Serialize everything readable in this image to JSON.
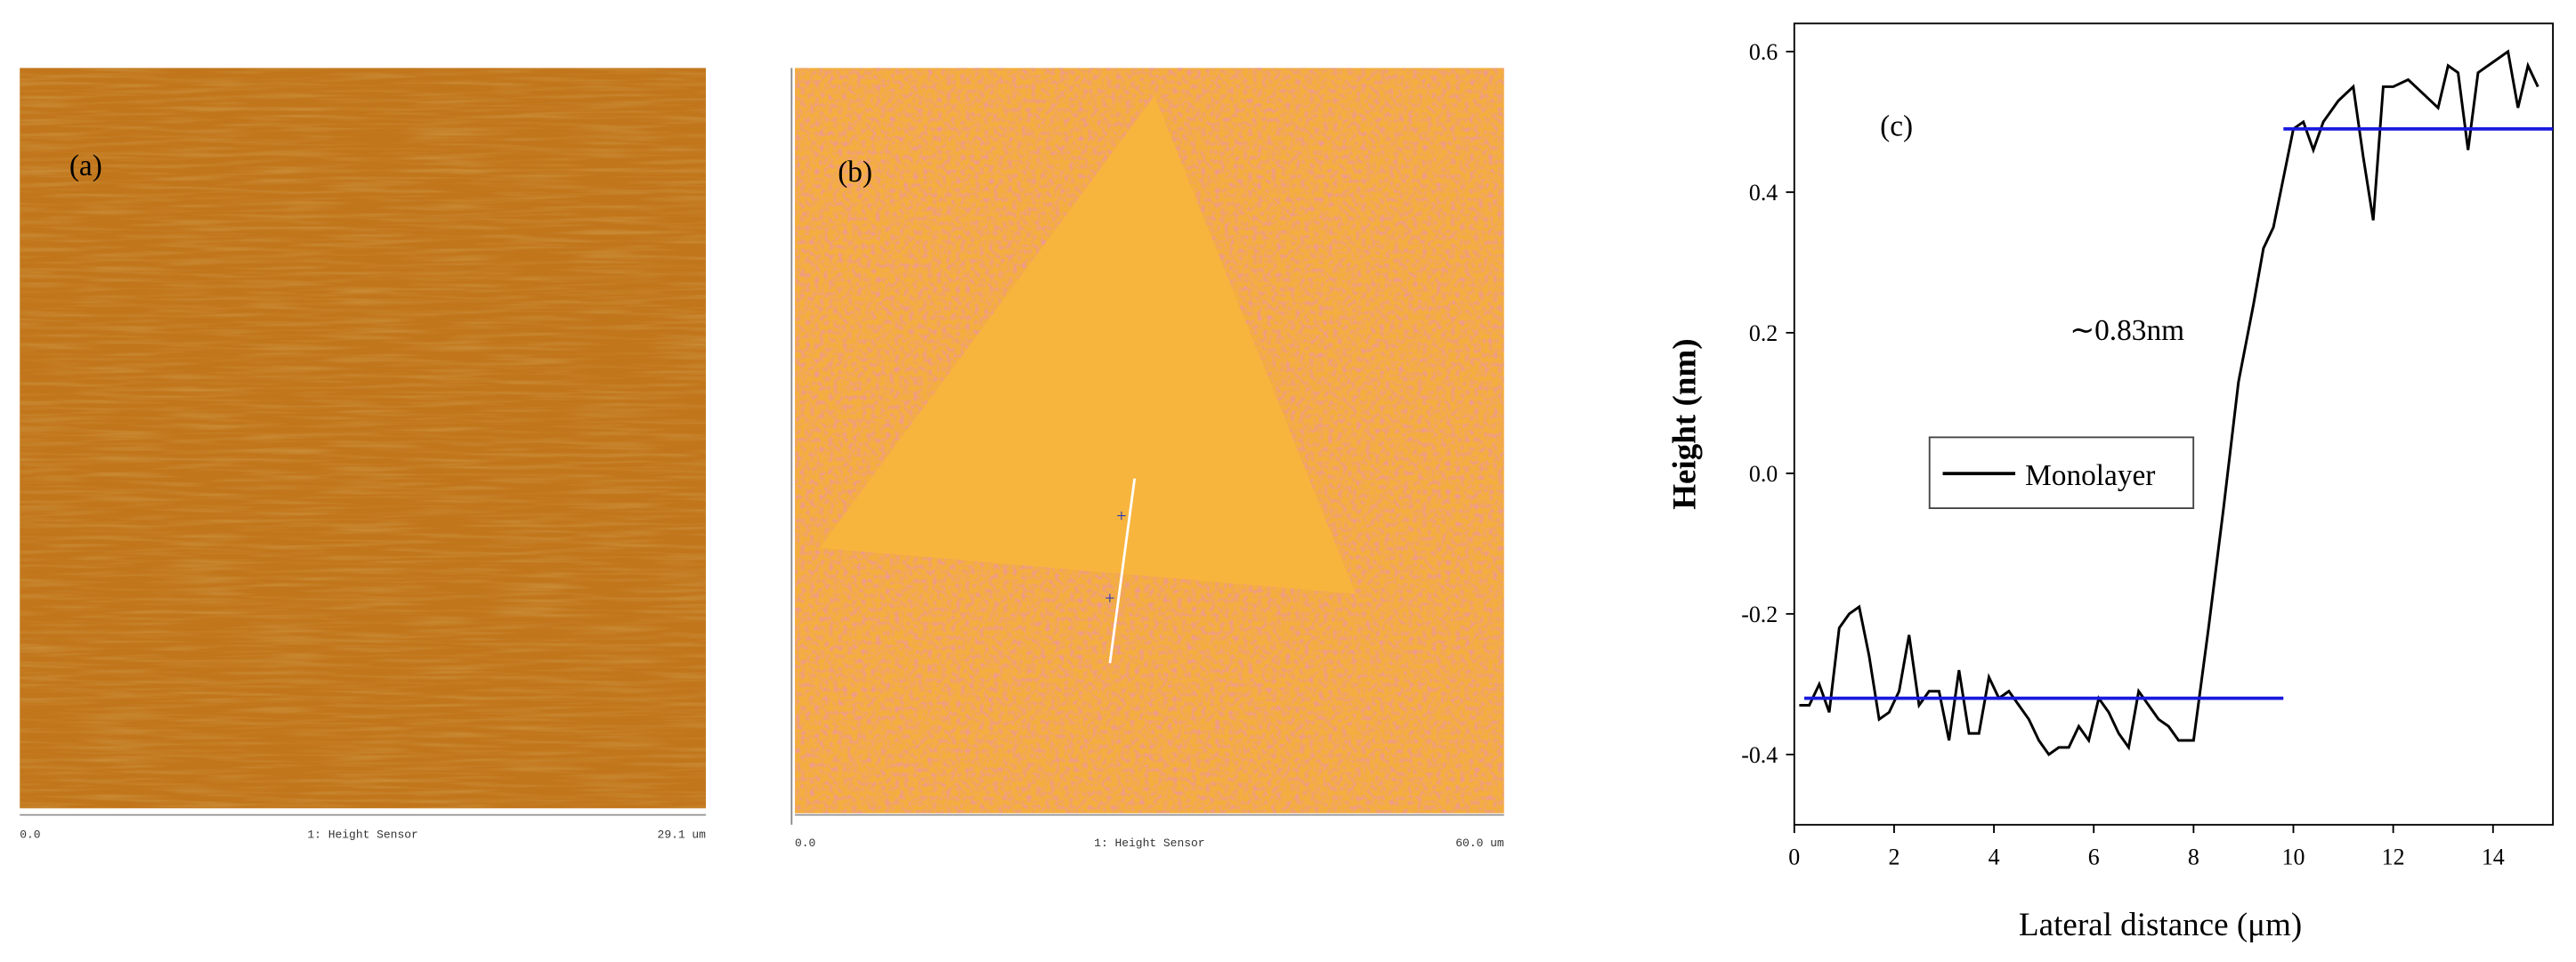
{
  "panels": [
    {
      "label": "(a)",
      "scale_start": "0.0",
      "scale_title": "1: Height Sensor",
      "scale_end": "29.1 um"
    },
    {
      "label": "(b)",
      "scale_start": "0.0",
      "scale_title": "1: Height Sensor",
      "scale_end": "60.0 um"
    }
  ],
  "chart_data": {
    "type": "line",
    "label": "(c)",
    "annotation": "∼0.83nm",
    "xlabel": "Lateral distance (μm)",
    "ylabel": "Height (nm)",
    "x": [
      0.1,
      0.3,
      0.5,
      0.7,
      0.9,
      1.1,
      1.3,
      1.5,
      1.7,
      1.9,
      2.1,
      2.3,
      2.5,
      2.7,
      2.9,
      3.1,
      3.3,
      3.5,
      3.7,
      3.9,
      4.1,
      4.3,
      4.5,
      4.7,
      4.9,
      5.1,
      5.3,
      5.5,
      5.7,
      5.9,
      6.1,
      6.3,
      6.5,
      6.7,
      6.9,
      7.1,
      7.3,
      7.5,
      7.7,
      8.0,
      8.3,
      8.6,
      8.9,
      9.2,
      9.4,
      9.6,
      9.8,
      10.0,
      10.2,
      10.4,
      10.6,
      10.9,
      11.2,
      11.4,
      11.6,
      11.8,
      12.0,
      12.3,
      12.6,
      12.9,
      13.1,
      13.3,
      13.5,
      13.7,
      13.9,
      14.1,
      14.3,
      14.5,
      14.7,
      14.9
    ],
    "series": [
      {
        "name": "Monolayer",
        "color": "#000000",
        "values": [
          -0.33,
          -0.33,
          -0.3,
          -0.34,
          -0.22,
          -0.2,
          -0.19,
          -0.26,
          -0.35,
          -0.34,
          -0.31,
          -0.23,
          -0.33,
          -0.31,
          -0.31,
          -0.38,
          -0.28,
          -0.37,
          -0.37,
          -0.29,
          -0.32,
          -0.31,
          -0.33,
          -0.35,
          -0.38,
          -0.4,
          -0.39,
          -0.39,
          -0.36,
          -0.38,
          -0.32,
          -0.34,
          -0.37,
          -0.39,
          -0.31,
          -0.33,
          -0.35,
          -0.36,
          -0.38,
          -0.38,
          -0.22,
          -0.05,
          0.13,
          0.24,
          0.32,
          0.35,
          0.42,
          0.49,
          0.5,
          0.46,
          0.5,
          0.53,
          0.55,
          0.45,
          0.36,
          0.55,
          0.55,
          0.56,
          0.54,
          0.52,
          0.58,
          0.57,
          0.46,
          0.57,
          0.58,
          0.59,
          0.6,
          0.52,
          0.58,
          0.55
        ]
      }
    ],
    "reference_lines": [
      {
        "y": -0.32,
        "x": [
          0.2,
          9.8
        ],
        "color": "#1a1adf"
      },
      {
        "y": 0.49,
        "x": [
          9.8,
          15.2
        ],
        "color": "#1a1adf"
      }
    ],
    "xlim": [
      0,
      15.2
    ],
    "ylim": [
      -0.5,
      0.64
    ],
    "xticks": [
      0,
      2,
      4,
      6,
      8,
      10,
      12,
      14
    ],
    "yticks": [
      -0.4,
      -0.2,
      {
        "value": 0,
        "label": "0.0"
      },
      0.2,
      0.4,
      0.6
    ]
  }
}
